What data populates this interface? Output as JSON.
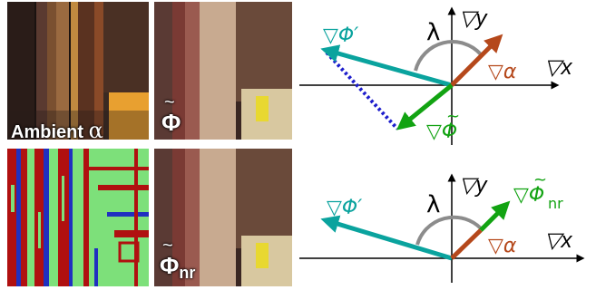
{
  "panels": {
    "ambient": {
      "label_text": "Ambient ",
      "label_symbol": "α"
    },
    "phi": {
      "label_symbol": "Φ"
    },
    "phi_nr": {
      "label_symbol": "Φ",
      "label_sub": "nr"
    }
  },
  "diagram_top": {
    "x_axis_label": "▽x",
    "y_axis_label": "▽y",
    "lambda_label": "λ",
    "phi_prime_label": "▽Φ′",
    "alpha_label": "▽α",
    "phi_label": "▽Φ",
    "phi_tilde": "~"
  },
  "diagram_bottom": {
    "x_axis_label": "▽x",
    "y_axis_label": "▽y",
    "lambda_label": "λ",
    "phi_prime_label": "▽Φ′",
    "alpha_label": "▽α",
    "phi_nr_label": "▽Φ",
    "phi_nr_sub": "nr",
    "phi_tilde": "~"
  },
  "colors": {
    "teal": "#0aa39e",
    "brown": "#b5481b",
    "green": "#12a312",
    "dotted_blue": "#1d1dcc",
    "arc_gray": "#8c8c8c",
    "axis": "#000000"
  }
}
